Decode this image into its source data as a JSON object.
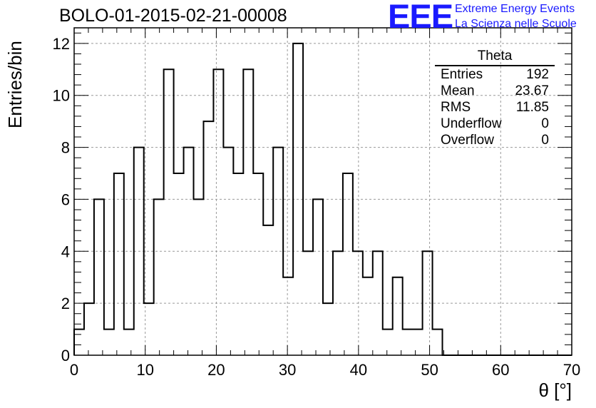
{
  "header": {
    "title": "BOLO-01-2015-02-21-00008",
    "logo_text": "EEE",
    "logo_line1": "Extreme Energy Events",
    "logo_line2": "La Scienza nelle Scuole"
  },
  "stats_box": {
    "title": "Theta",
    "rows": [
      {
        "label": "Entries",
        "value": "192"
      },
      {
        "label": "Mean",
        "value": "23.67"
      },
      {
        "label": "RMS",
        "value": "11.85"
      },
      {
        "label": "Underflow",
        "value": "0"
      },
      {
        "label": "Overflow",
        "value": "0"
      }
    ]
  },
  "chart_data": {
    "type": "bar",
    "style": "step-histogram",
    "title": "BOLO-01-2015-02-21-00008",
    "xlabel": "θ [°]",
    "ylabel": "Entries/bin",
    "xlim": [
      0,
      70
    ],
    "ylim": [
      0,
      12.6
    ],
    "grid": true,
    "bin_width": 1.4,
    "bin_edges_start": 0,
    "values": [
      1,
      2,
      6,
      1,
      7,
      1,
      8,
      2,
      6,
      11,
      7,
      8,
      6,
      9,
      11,
      8,
      7,
      11,
      7,
      5,
      8,
      3,
      12,
      4,
      6,
      2,
      4,
      7,
      4,
      3,
      4,
      1,
      3,
      1,
      1,
      4,
      1,
      0,
      0,
      0,
      0,
      0,
      0,
      0,
      0,
      0,
      0,
      0,
      0,
      0
    ],
    "x_ticks": [
      "0",
      "10",
      "20",
      "30",
      "40",
      "50",
      "60",
      "70"
    ],
    "y_ticks": [
      "0",
      "2",
      "4",
      "6",
      "8",
      "10",
      "12"
    ],
    "x_tick_values": [
      0,
      10,
      20,
      30,
      40,
      50,
      60,
      70
    ],
    "y_tick_values": [
      0,
      2,
      4,
      6,
      8,
      10,
      12
    ]
  }
}
